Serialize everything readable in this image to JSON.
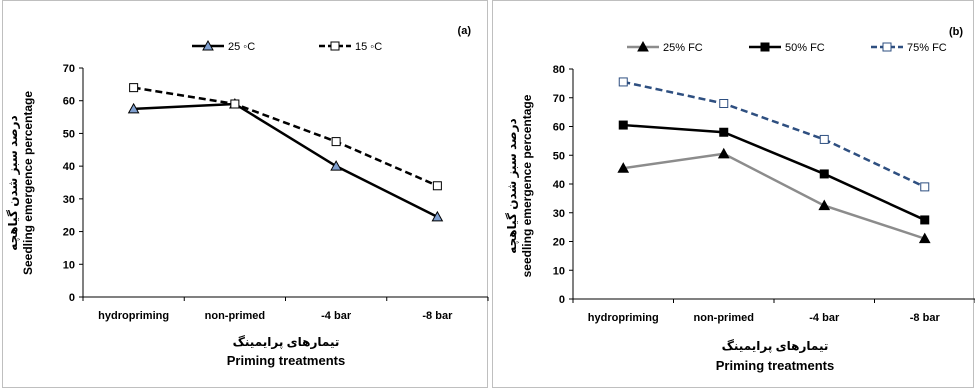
{
  "chart_data": [
    {
      "type": "line",
      "panel_label": "(a)",
      "categories": [
        "hydropriming",
        "non-primed",
        "-4 bar",
        "-8 bar"
      ],
      "series": [
        {
          "name": "25 ◦C",
          "values": [
            57.5,
            59,
            40,
            24.5
          ],
          "color": "#000000",
          "dashed": false,
          "marker": "triangle",
          "marker_fill": "#7f9fcf"
        },
        {
          "name": "15 ◦C",
          "values": [
            64,
            59,
            47.5,
            34
          ],
          "color": "#000000",
          "dashed": true,
          "marker": "square",
          "marker_fill": "#ffffff"
        }
      ],
      "ylabel_fa": "درصد سبز شدن گیاهچه",
      "ylabel": "Seedling emergence percentage",
      "xlabel_fa": "تیمارهای پرایمینگ",
      "xlabel": "Priming treatments",
      "ylim": [
        0,
        70
      ],
      "yticks": [
        "0",
        "10",
        "20",
        "30",
        "40",
        "50",
        "60",
        "70"
      ],
      "legend_position": "top",
      "grid": false
    },
    {
      "type": "line",
      "panel_label": "(b)",
      "categories": [
        "hydropriming",
        "non-primed",
        "-4 bar",
        "-8 bar"
      ],
      "series": [
        {
          "name": "25% FC",
          "values": [
            45.5,
            50.5,
            32.5,
            21
          ],
          "color": "#8c8c8c",
          "dashed": false,
          "marker": "triangle",
          "marker_fill": "#000000"
        },
        {
          "name": "50% FC",
          "values": [
            60.5,
            58,
            43.5,
            27.5
          ],
          "color": "#000000",
          "dashed": false,
          "marker": "square",
          "marker_fill": "#000000"
        },
        {
          "name": "75% FC",
          "values": [
            75.5,
            68,
            55.5,
            39
          ],
          "color": "#2e4f80",
          "dashed": true,
          "marker": "square",
          "marker_fill": "#ffffff"
        }
      ],
      "ylabel_fa": "درصد سبز شدن گیاهچه",
      "ylabel": "seedling emergence percentage",
      "xlabel_fa": "تیمارهای پرایمینگ",
      "xlabel": "Priming treatments",
      "ylim": [
        0,
        80
      ],
      "yticks": [
        "0",
        "10",
        "20",
        "30",
        "40",
        "50",
        "60",
        "70",
        "80"
      ],
      "legend_position": "top",
      "grid": false
    }
  ]
}
